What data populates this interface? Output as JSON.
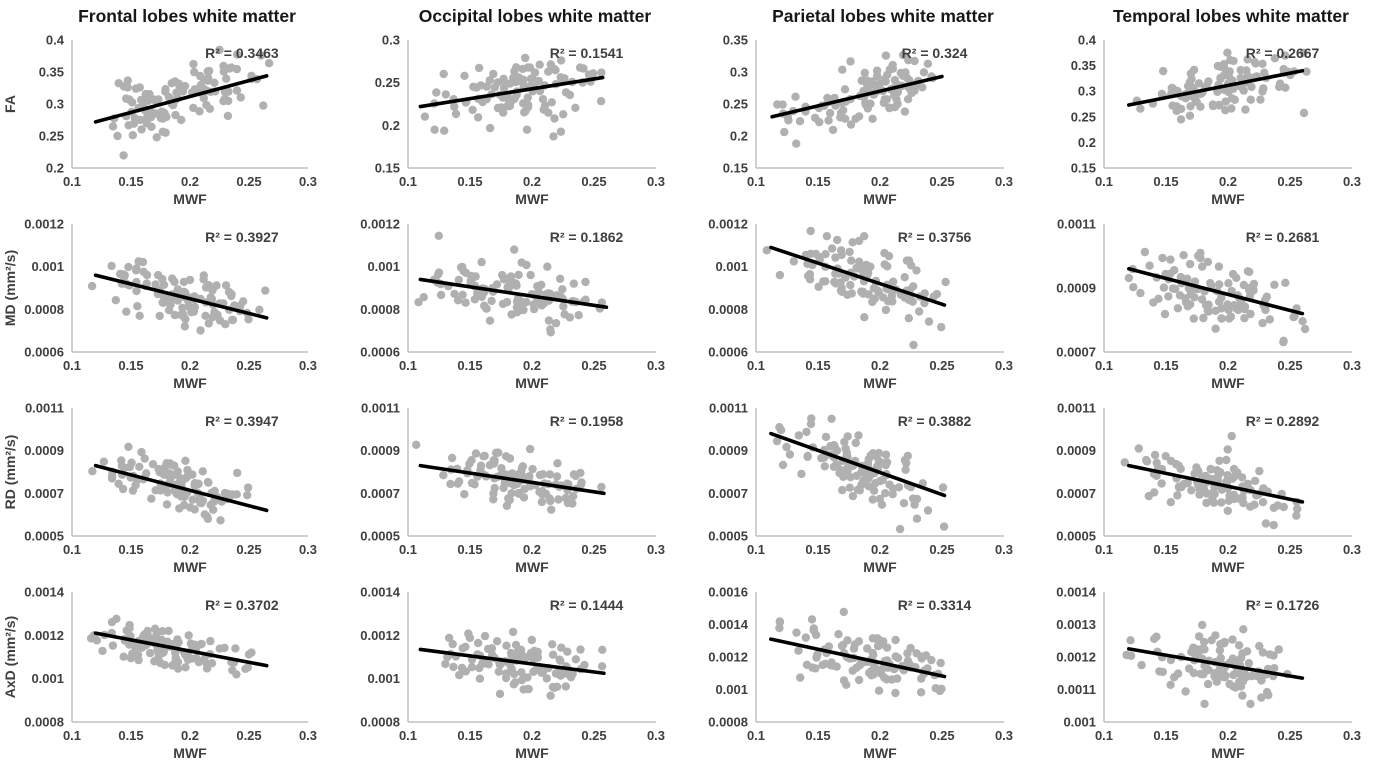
{
  "figure": {
    "background": "#ffffff",
    "description": "Scatter plots of DTI metrics versus myelin water fraction (MWF) in four white matter regions"
  },
  "chart_data": {
    "type": "scatter",
    "layout": {
      "rows": 4,
      "cols": 4,
      "grid": "off",
      "legend": "none"
    },
    "column_titles": [
      "Frontal lobes white matter",
      "Occipital lobes white matter",
      "Parietal lobes white matter",
      "Temporal lobes white matter"
    ],
    "row_ylabels": [
      "FA",
      "MD (mm²/s)",
      "RD (mm²/s)",
      "AxD (mm²/s)"
    ],
    "xlabel": "MWF",
    "xlim": [
      0.1,
      0.3
    ],
    "x_ticks": [
      0.1,
      0.15,
      0.2,
      0.25,
      0.3
    ],
    "x_tick_labels": [
      "0.1",
      "0.15",
      "0.2",
      "0.25",
      "0.3"
    ],
    "colors": {
      "marker": "#b0b0b0",
      "trend_line": "#000000",
      "axis_line": "#bfbfbf",
      "tick_text": "#3f3f3f",
      "title_text": "#171717"
    },
    "marker": {
      "radius": 4.2
    },
    "panels": [
      {
        "id": "frontal-fa",
        "row": 0,
        "col": 0,
        "r2": 0.3463,
        "r2_label": "R² = 0.3463",
        "ylim": [
          0.2,
          0.4
        ],
        "y_ticks": [
          0.2,
          0.25,
          0.3,
          0.35,
          0.4
        ],
        "y_tick_labels": [
          "0.2",
          "0.25",
          "0.3",
          "0.35",
          "0.4"
        ],
        "trend": {
          "x1": 0.12,
          "y1": 0.272,
          "x2": 0.265,
          "y2": 0.344
        },
        "n_points": 110,
        "seed": 11
      },
      {
        "id": "occipital-fa",
        "row": 0,
        "col": 1,
        "r2": 0.1541,
        "r2_label": "R² = 0.1541",
        "ylim": [
          0.15,
          0.3
        ],
        "y_ticks": [
          0.15,
          0.2,
          0.25,
          0.3
        ],
        "y_tick_labels": [
          "0.15",
          "0.2",
          "0.25",
          "0.3"
        ],
        "trend": {
          "x1": 0.11,
          "y1": 0.222,
          "x2": 0.257,
          "y2": 0.256
        },
        "n_points": 110,
        "seed": 22
      },
      {
        "id": "parietal-fa",
        "row": 0,
        "col": 2,
        "r2": 0.324,
        "r2_label": "R² = 0.324",
        "ylim": [
          0.15,
          0.35
        ],
        "y_ticks": [
          0.15,
          0.2,
          0.25,
          0.3,
          0.35
        ],
        "y_tick_labels": [
          "0.15",
          "0.2",
          "0.25",
          "0.3",
          "0.35"
        ],
        "trend": {
          "x1": 0.113,
          "y1": 0.23,
          "x2": 0.25,
          "y2": 0.293
        },
        "n_points": 110,
        "seed": 33
      },
      {
        "id": "temporal-fa",
        "row": 0,
        "col": 3,
        "r2": 0.2667,
        "r2_label": "R² = 0.2667",
        "ylim": [
          0.15,
          0.4
        ],
        "y_ticks": [
          0.15,
          0.2,
          0.25,
          0.3,
          0.35,
          0.4
        ],
        "y_tick_labels": [
          "0.15",
          "0.2",
          "0.25",
          "0.3",
          "0.35",
          "0.4"
        ],
        "trend": {
          "x1": 0.12,
          "y1": 0.273,
          "x2": 0.26,
          "y2": 0.34
        },
        "n_points": 110,
        "seed": 44
      },
      {
        "id": "frontal-md",
        "row": 1,
        "col": 0,
        "r2": 0.3927,
        "r2_label": "R² = 0.3927",
        "ylim": [
          0.0006,
          0.0012
        ],
        "y_ticks": [
          0.0006,
          0.0008,
          0.001,
          0.0012
        ],
        "y_tick_labels": [
          "0.0006",
          "0.0008",
          "0.001",
          "0.0012"
        ],
        "trend": {
          "x1": 0.12,
          "y1": 0.00096,
          "x2": 0.265,
          "y2": 0.00076
        },
        "n_points": 110,
        "seed": 55
      },
      {
        "id": "occipital-md",
        "row": 1,
        "col": 1,
        "r2": 0.1862,
        "r2_label": "R² = 0.1862",
        "ylim": [
          0.0006,
          0.0012
        ],
        "y_ticks": [
          0.0006,
          0.0008,
          0.001,
          0.0012
        ],
        "y_tick_labels": [
          "0.0006",
          "0.0008",
          "0.001",
          "0.0012"
        ],
        "trend": {
          "x1": 0.11,
          "y1": 0.00094,
          "x2": 0.26,
          "y2": 0.00081
        },
        "n_points": 110,
        "seed": 66
      },
      {
        "id": "parietal-md",
        "row": 1,
        "col": 2,
        "r2": 0.3756,
        "r2_label": "R² = 0.3756",
        "ylim": [
          0.0006,
          0.0012
        ],
        "y_ticks": [
          0.0006,
          0.0008,
          0.001,
          0.0012
        ],
        "y_tick_labels": [
          "0.0006",
          "0.0008",
          "0.001",
          "0.0012"
        ],
        "trend": {
          "x1": 0.112,
          "y1": 0.00109,
          "x2": 0.252,
          "y2": 0.00082
        },
        "n_points": 110,
        "seed": 77
      },
      {
        "id": "temporal-md",
        "row": 1,
        "col": 3,
        "r2": 0.2681,
        "r2_label": "R² = 0.2681",
        "ylim": [
          0.0007,
          0.0011
        ],
        "y_ticks": [
          0.0007,
          0.0009,
          0.0011
        ],
        "y_tick_labels": [
          "0.0007",
          "0.0009",
          "0.0011"
        ],
        "trend": {
          "x1": 0.12,
          "y1": 0.00096,
          "x2": 0.26,
          "y2": 0.00082
        },
        "n_points": 110,
        "seed": 88
      },
      {
        "id": "frontal-rd",
        "row": 2,
        "col": 0,
        "r2": 0.3947,
        "r2_label": "R² = 0.3947",
        "ylim": [
          0.0005,
          0.0011
        ],
        "y_ticks": [
          0.0005,
          0.0007,
          0.0009,
          0.0011
        ],
        "y_tick_labels": [
          "0.0005",
          "0.0007",
          "0.0009",
          "0.0011"
        ],
        "trend": {
          "x1": 0.12,
          "y1": 0.00083,
          "x2": 0.265,
          "y2": 0.00062
        },
        "n_points": 110,
        "seed": 99
      },
      {
        "id": "occipital-rd",
        "row": 2,
        "col": 1,
        "r2": 0.1958,
        "r2_label": "R² = 0.1958",
        "ylim": [
          0.0005,
          0.0011
        ],
        "y_ticks": [
          0.0005,
          0.0007,
          0.0009,
          0.0011
        ],
        "y_tick_labels": [
          "0.0005",
          "0.0007",
          "0.0009",
          "0.0011"
        ],
        "trend": {
          "x1": 0.11,
          "y1": 0.00083,
          "x2": 0.258,
          "y2": 0.0007
        },
        "n_points": 110,
        "seed": 110
      },
      {
        "id": "parietal-rd",
        "row": 2,
        "col": 2,
        "r2": 0.3882,
        "r2_label": "R² = 0.3882",
        "ylim": [
          0.0005,
          0.0011
        ],
        "y_ticks": [
          0.0005,
          0.0007,
          0.0009,
          0.0011
        ],
        "y_tick_labels": [
          "0.0005",
          "0.0007",
          "0.0009",
          "0.0011"
        ],
        "trend": {
          "x1": 0.112,
          "y1": 0.00098,
          "x2": 0.252,
          "y2": 0.00069
        },
        "n_points": 110,
        "seed": 121
      },
      {
        "id": "temporal-rd",
        "row": 2,
        "col": 3,
        "r2": 0.2892,
        "r2_label": "R² = 0.2892",
        "ylim": [
          0.0005,
          0.0011
        ],
        "y_ticks": [
          0.0005,
          0.0007,
          0.0009,
          0.0011
        ],
        "y_tick_labels": [
          "0.0005",
          "0.0007",
          "0.0009",
          "0.0011"
        ],
        "trend": {
          "x1": 0.12,
          "y1": 0.00083,
          "x2": 0.26,
          "y2": 0.00066
        },
        "n_points": 110,
        "seed": 132
      },
      {
        "id": "frontal-axd",
        "row": 3,
        "col": 0,
        "r2": 0.3702,
        "r2_label": "R² = 0.3702",
        "ylim": [
          0.0008,
          0.0014
        ],
        "y_ticks": [
          0.0008,
          0.001,
          0.0012,
          0.0014
        ],
        "y_tick_labels": [
          "0.0008",
          "0.001",
          "0.0012",
          "0.0014"
        ],
        "trend": {
          "x1": 0.12,
          "y1": 0.00121,
          "x2": 0.265,
          "y2": 0.00106
        },
        "n_points": 110,
        "seed": 143
      },
      {
        "id": "occipital-axd",
        "row": 3,
        "col": 1,
        "r2": 0.1444,
        "r2_label": "R² = 0.1444",
        "ylim": [
          0.0008,
          0.0014
        ],
        "y_ticks": [
          0.0008,
          0.001,
          0.0012,
          0.0014
        ],
        "y_tick_labels": [
          "0.0008",
          "0.001",
          "0.0012",
          "0.0014"
        ],
        "trend": {
          "x1": 0.11,
          "y1": 0.001135,
          "x2": 0.258,
          "y2": 0.001025
        },
        "n_points": 110,
        "seed": 154
      },
      {
        "id": "parietal-axd",
        "row": 3,
        "col": 2,
        "r2": 0.3314,
        "r2_label": "R² = 0.3314",
        "ylim": [
          0.0008,
          0.0016
        ],
        "y_ticks": [
          0.0008,
          0.001,
          0.0012,
          0.0014,
          0.0016
        ],
        "y_tick_labels": [
          "0.0008",
          "0.001",
          "0.0012",
          "0.0014",
          "0.0016"
        ],
        "trend": {
          "x1": 0.112,
          "y1": 0.00131,
          "x2": 0.252,
          "y2": 0.00108
        },
        "n_points": 110,
        "seed": 165
      },
      {
        "id": "temporal-axd",
        "row": 3,
        "col": 3,
        "r2": 0.1726,
        "r2_label": "R² = 0.1726",
        "ylim": [
          0.001,
          0.0014
        ],
        "y_ticks": [
          0.001,
          0.0011,
          0.0012,
          0.0013,
          0.0014
        ],
        "y_tick_labels": [
          "0.001",
          "0.0011",
          "0.0012",
          "0.0013",
          "0.0014"
        ],
        "trend": {
          "x1": 0.12,
          "y1": 0.001225,
          "x2": 0.26,
          "y2": 0.001135
        },
        "n_points": 110,
        "seed": 176
      }
    ]
  }
}
